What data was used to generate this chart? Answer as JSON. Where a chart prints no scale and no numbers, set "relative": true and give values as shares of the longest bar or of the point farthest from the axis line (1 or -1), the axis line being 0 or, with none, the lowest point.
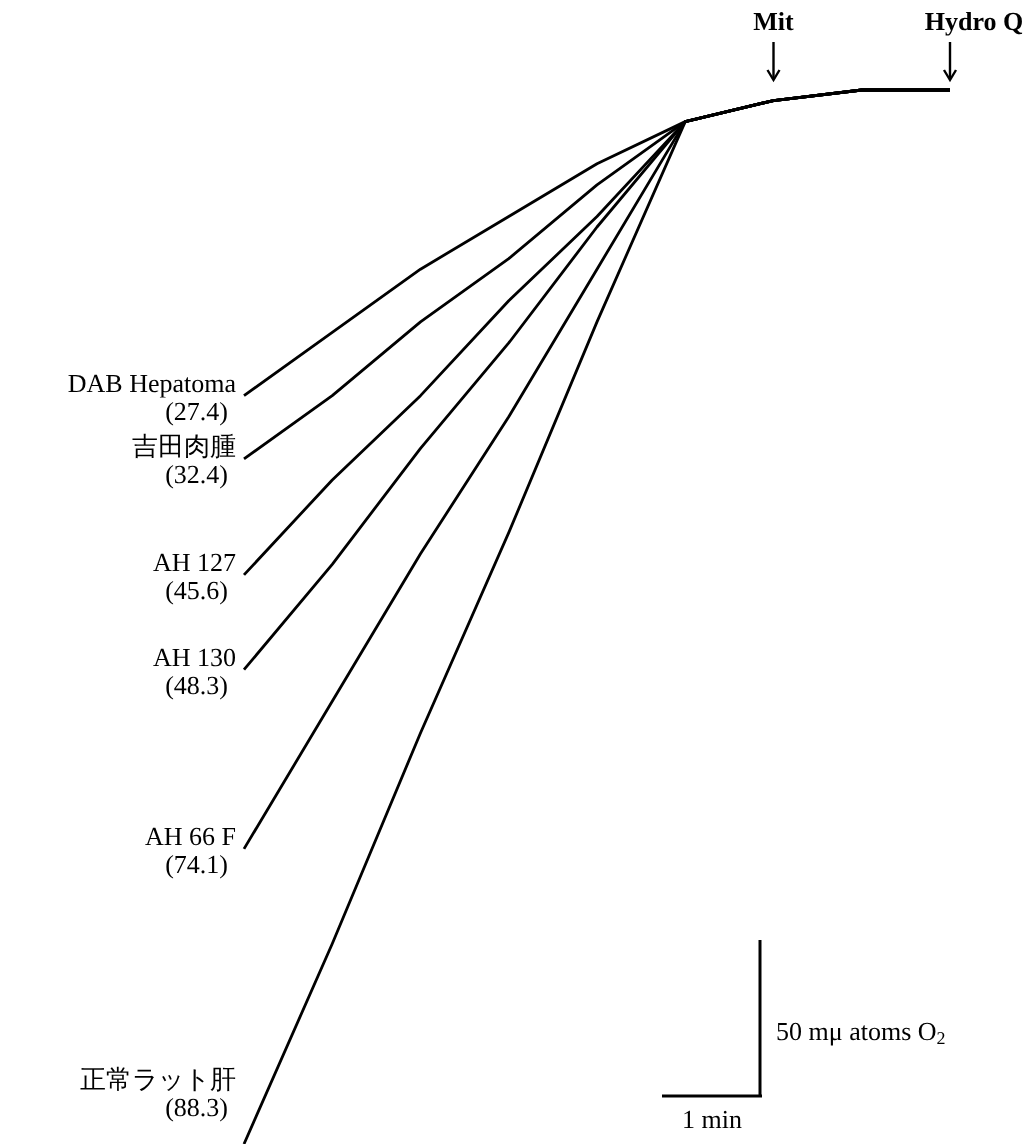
{
  "chart_data": {
    "type": "line",
    "relative": true,
    "categories": [
      null,
      null,
      null,
      null,
      null,
      null,
      null,
      null,
      null
    ],
    "legend": false,
    "marker": "none",
    "line_style": "solid",
    "series": [
      {
        "name": "DAB Hepatoma (27.4)",
        "color": "#000000",
        "values": [
          0.71,
          0.77,
          0.83,
          0.88,
          0.93,
          0.97,
          0.99,
          1,
          1
        ]
      },
      {
        "name": "吉田肉腫 (32.4)",
        "color": "#000000",
        "values": [
          0.65,
          0.71,
          0.78,
          0.84,
          0.91,
          0.97,
          0.99,
          1,
          1
        ]
      },
      {
        "name": "AH 127 (45.6)",
        "color": "#000000",
        "values": [
          0.54,
          0.63,
          0.71,
          0.8,
          0.88,
          0.97,
          0.99,
          1,
          1
        ]
      },
      {
        "name": "AH 130 (48.3)",
        "color": "#000000",
        "values": [
          0.45,
          0.55,
          0.66,
          0.76,
          0.87,
          0.97,
          0.99,
          1,
          1
        ]
      },
      {
        "name": "AH 66 F (74.1)",
        "color": "#000000",
        "values": [
          0.28,
          0.42,
          0.56,
          0.69,
          0.83,
          0.97,
          0.99,
          1,
          1
        ]
      },
      {
        "name": "正常ラット肝 (88.3)",
        "color": "#000000",
        "values": [
          0,
          0.19,
          0.39,
          0.58,
          0.78,
          0.97,
          0.99,
          1,
          1
        ]
      }
    ],
    "annotations": [
      "Mit",
      "Hydro Q",
      "50 mμ atoms O$_{2}$",
      "1 min"
    ]
  }
}
